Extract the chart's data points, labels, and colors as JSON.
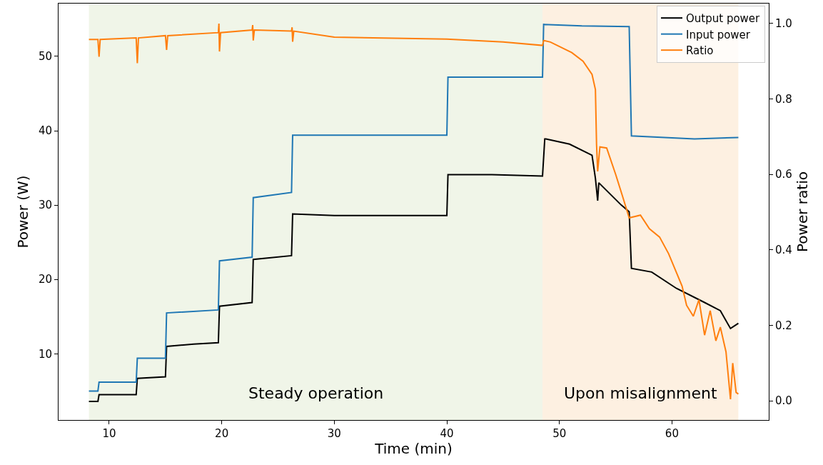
{
  "chart_data": {
    "type": "line",
    "xlabel": "Time (min)",
    "ylabel": "Power (W)",
    "y2label": "Power ratio",
    "xlim": [
      5.5,
      68.6
    ],
    "xticks": [
      10,
      20,
      30,
      40,
      50,
      60
    ],
    "ylim": [
      1.1,
      57.1
    ],
    "yticks": [
      10,
      20,
      30,
      40,
      50
    ],
    "y2lim": [
      -0.051,
      1.053
    ],
    "y2ticks": [
      {
        "value": 0,
        "label": "0.0"
      },
      {
        "value": 0.2,
        "label": "0.2"
      },
      {
        "value": 0.4,
        "label": "0.4"
      },
      {
        "value": 0.6,
        "label": "0.6"
      },
      {
        "value": 0.8,
        "label": "0.8"
      },
      {
        "value": 1,
        "label": "1.0"
      }
    ],
    "grid": false,
    "legend": "top right",
    "line_style": "solid",
    "marker": "none",
    "bands": [
      {
        "axis": "x",
        "from": 8.2,
        "to": 48.5,
        "label": "Steady operation",
        "color": "#f0f5e8"
      },
      {
        "axis": "x",
        "from": 48.5,
        "to": 65.9,
        "label": "Upon misalignment",
        "color": "#fdf0e1"
      }
    ],
    "series": [
      {
        "name": "Output power",
        "color": "#000000",
        "x": [
          8.2,
          9.0,
          9.1,
          12.4,
          12.5,
          15.0,
          15.1,
          17.5,
          19.7,
          19.8,
          22.7,
          22.8,
          26.2,
          26.3,
          30.0,
          40.0,
          40.1,
          44.0,
          48.5,
          48.7,
          48.8,
          50.9,
          52.9,
          53.2,
          53.4,
          53.5,
          55.5,
          56.2,
          56.4,
          58.2,
          60.4,
          62.9,
          64.3,
          65.2,
          65.9
        ],
        "values": [
          3.6,
          3.6,
          4.5,
          4.5,
          6.7,
          6.9,
          11.0,
          11.3,
          11.5,
          16.4,
          16.9,
          22.7,
          23.2,
          28.8,
          28.6,
          28.6,
          34.1,
          34.1,
          33.9,
          38.9,
          38.9,
          38.2,
          36.7,
          33.6,
          30.6,
          33.0,
          30.0,
          29.1,
          21.5,
          21.0,
          18.8,
          16.9,
          15.8,
          13.4,
          14.1
        ]
      },
      {
        "name": "Input power",
        "color": "#1f77b4",
        "x": [
          8.2,
          9.0,
          9.1,
          12.4,
          12.5,
          15.0,
          15.1,
          19.7,
          19.8,
          22.7,
          22.8,
          26.2,
          26.3,
          40.0,
          40.1,
          48.5,
          48.6,
          52.0,
          56.2,
          56.4,
          62.0,
          65.9
        ],
        "values": [
          5.0,
          5.0,
          6.2,
          6.2,
          9.4,
          9.4,
          15.5,
          15.9,
          22.5,
          23.0,
          31.0,
          31.7,
          39.4,
          39.4,
          47.2,
          47.2,
          54.3,
          54.1,
          54.0,
          39.3,
          38.9,
          39.1
        ]
      },
      {
        "name": "Ratio",
        "color": "#ff7f0e",
        "axis": "y2",
        "x": [
          8.2,
          9.0,
          9.1,
          9.2,
          12.4,
          12.5,
          12.6,
          15.0,
          15.1,
          15.2,
          19.7,
          19.75,
          19.8,
          19.9,
          22.7,
          22.75,
          22.8,
          22.9,
          26.2,
          26.25,
          26.3,
          26.4,
          30.0,
          40.0,
          45.0,
          48.5,
          48.6,
          49.2,
          51.1,
          52.1,
          52.9,
          53.2,
          53.3,
          53.4,
          53.6,
          54.2,
          55.0,
          55.6,
          56.2,
          57.2,
          58.0,
          58.9,
          59.7,
          60.4,
          60.9,
          61.3,
          61.9,
          62.4,
          62.9,
          63.4,
          63.9,
          64.3,
          64.8,
          65.2,
          65.4,
          65.7,
          65.9
        ],
        "values": [
          0.958,
          0.958,
          0.912,
          0.958,
          0.962,
          0.895,
          0.962,
          0.968,
          0.93,
          0.968,
          0.976,
          1.0,
          0.926,
          0.976,
          0.983,
          0.996,
          0.955,
          0.983,
          0.98,
          0.99,
          0.952,
          0.98,
          0.964,
          0.959,
          0.951,
          0.942,
          0.955,
          0.951,
          0.923,
          0.9,
          0.865,
          0.825,
          0.68,
          0.608,
          0.673,
          0.67,
          0.6,
          0.543,
          0.485,
          0.492,
          0.456,
          0.434,
          0.39,
          0.34,
          0.304,
          0.253,
          0.224,
          0.268,
          0.174,
          0.239,
          0.159,
          0.195,
          0.13,
          0.004,
          0.1,
          0.022,
          0.018
        ]
      }
    ]
  }
}
